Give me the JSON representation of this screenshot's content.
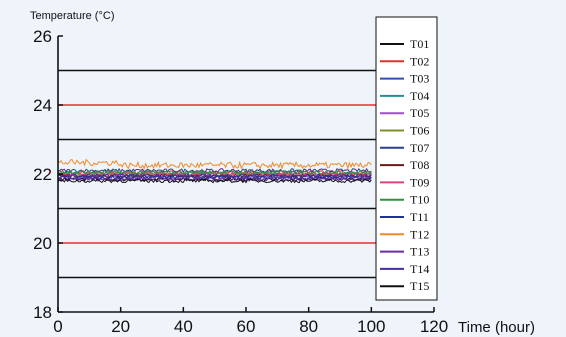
{
  "chart_data": {
    "type": "line",
    "title": "",
    "ylabel": "Temperature (°C)",
    "xlabel": "Time (hour)",
    "xlim": [
      0,
      120
    ],
    "ylim": [
      18,
      26
    ],
    "x_ticks": [
      0,
      20,
      40,
      60,
      80,
      100,
      120
    ],
    "y_ticks": [
      18,
      20,
      22,
      24,
      26
    ],
    "reference_lines": [
      {
        "y": 25,
        "color": "#111111"
      },
      {
        "y": 24,
        "color": "#e53030"
      },
      {
        "y": 23,
        "color": "#111111"
      },
      {
        "y": 21,
        "color": "#111111"
      },
      {
        "y": 20,
        "color": "#e53030"
      },
      {
        "y": 19,
        "color": "#111111"
      }
    ],
    "x_data_range": [
      0,
      100
    ],
    "series": [
      {
        "name": "T01",
        "color": "#111111",
        "mean": 21.85
      },
      {
        "name": "T02",
        "color": "#e53030",
        "mean": 22.05
      },
      {
        "name": "T03",
        "color": "#2f4fb0",
        "mean": 21.95
      },
      {
        "name": "T04",
        "color": "#1f8f8f",
        "mean": 22.0
      },
      {
        "name": "T05",
        "color": "#9a4fc8",
        "mean": 21.9
      },
      {
        "name": "T06",
        "color": "#7f8f2a",
        "mean": 22.0
      },
      {
        "name": "T07",
        "color": "#2b3f8f",
        "mean": 22.1
      },
      {
        "name": "T08",
        "color": "#6a1a1a",
        "mean": 21.95
      },
      {
        "name": "T09",
        "color": "#e0407f",
        "mean": 22.0
      },
      {
        "name": "T10",
        "color": "#2f8f3f",
        "mean": 22.05
      },
      {
        "name": "T11",
        "color": "#1f2fa0",
        "mean": 21.9
      },
      {
        "name": "T12",
        "color": "#f08a2a",
        "mean": 22.25
      },
      {
        "name": "T13",
        "color": "#6a2aa0",
        "mean": 21.85
      },
      {
        "name": "T14",
        "color": "#3f2fa0",
        "mean": 21.95
      },
      {
        "name": "T15",
        "color": "#111111",
        "mean": 21.8
      }
    ],
    "legend_position": "right",
    "grid": false
  }
}
